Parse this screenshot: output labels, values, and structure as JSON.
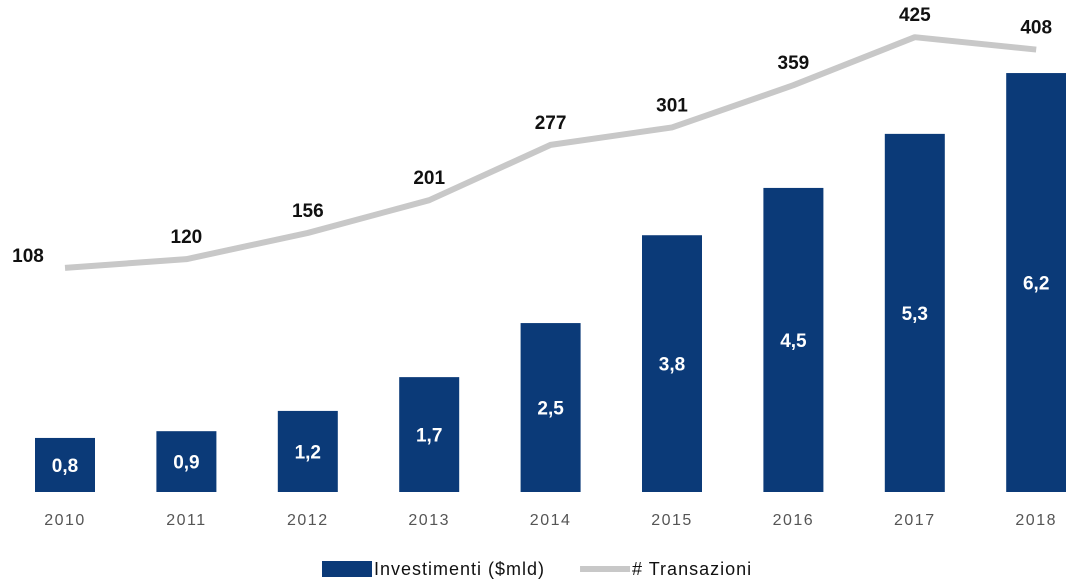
{
  "chart_data": {
    "type": "bar-line",
    "categories": [
      "2010",
      "2011",
      "2012",
      "2013",
      "2014",
      "2015",
      "2016",
      "2017",
      "2018"
    ],
    "series": [
      {
        "name": "Investimenti ($mld)",
        "type": "bar",
        "color": "#0b3a78",
        "values": [
          0.8,
          0.9,
          1.2,
          1.7,
          2.5,
          3.8,
          4.5,
          5.3,
          6.2
        ],
        "value_labels": [
          "0,8",
          "0,9",
          "1,2",
          "1,7",
          "2,5",
          "3,8",
          "4,5",
          "5,3",
          "6,2"
        ]
      },
      {
        "name": "# Transazioni",
        "type": "line",
        "axis": "y2",
        "color": "#c8c8c8",
        "values": [
          108,
          120,
          156,
          201,
          277,
          301,
          359,
          425,
          408
        ]
      }
    ],
    "ylim": [
      0,
      7
    ],
    "y2lim": [
      -200,
      450
    ],
    "legend": "bottom"
  }
}
